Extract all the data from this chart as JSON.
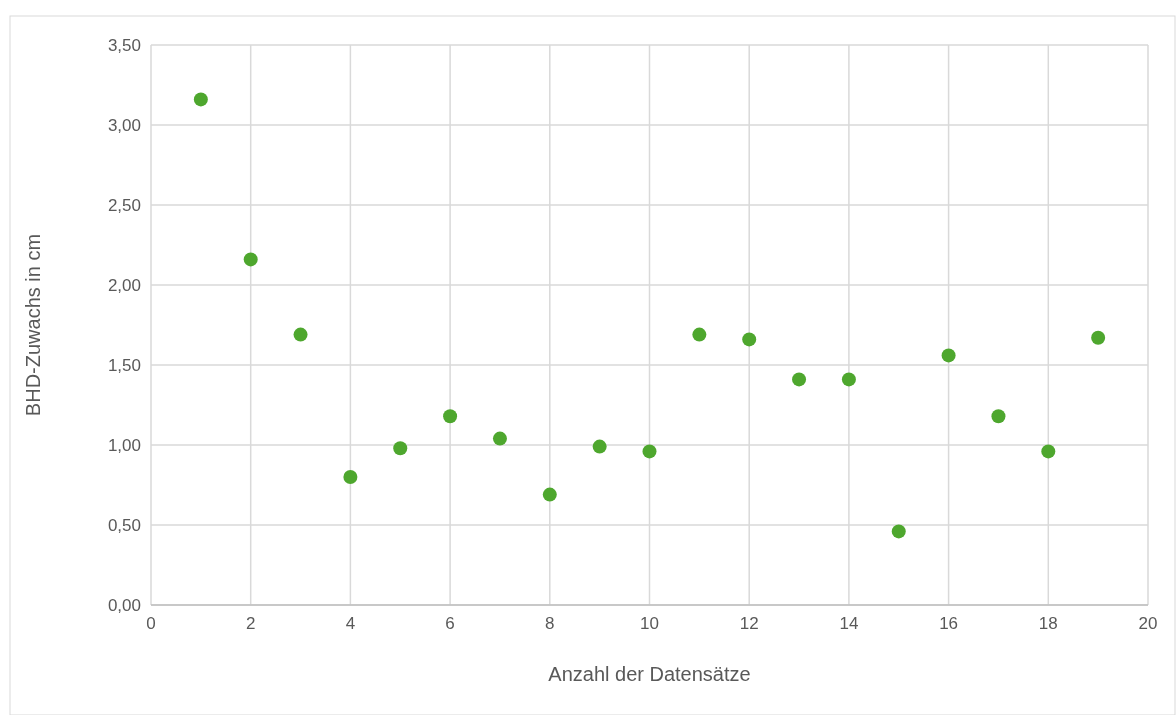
{
  "chart_data": {
    "type": "scatter",
    "xlabel": "Anzahl der Datensätze",
    "ylabel": "BHD-Zuwachs in cm",
    "x": [
      1,
      2,
      3,
      4,
      5,
      6,
      7,
      8,
      9,
      10,
      11,
      12,
      13,
      14,
      15,
      16,
      17,
      18,
      19
    ],
    "series": [
      {
        "color": "#4ea72e",
        "values": [
          3.16,
          2.16,
          1.69,
          0.8,
          0.98,
          1.18,
          1.04,
          0.69,
          0.99,
          0.96,
          1.69,
          1.66,
          1.41,
          1.41,
          0.46,
          1.56,
          1.18,
          0.96,
          1.67
        ]
      }
    ],
    "xlim": [
      0,
      20
    ],
    "xticks": [
      0,
      2,
      4,
      6,
      8,
      10,
      12,
      14,
      16,
      18,
      20
    ],
    "ylim": [
      0,
      3.5
    ],
    "yticks": [
      {
        "value": 0,
        "label": "0,00"
      },
      {
        "value": 0.5,
        "label": "0,50"
      },
      {
        "value": 1,
        "label": "1,00"
      },
      {
        "value": 1.5,
        "label": "1,50"
      },
      {
        "value": 2,
        "label": "2,00"
      },
      {
        "value": 2.5,
        "label": "2,50"
      },
      {
        "value": 3,
        "label": "3,00"
      },
      {
        "value": 3.5,
        "label": "3,50"
      }
    ],
    "grid": true,
    "marker": "circle"
  }
}
